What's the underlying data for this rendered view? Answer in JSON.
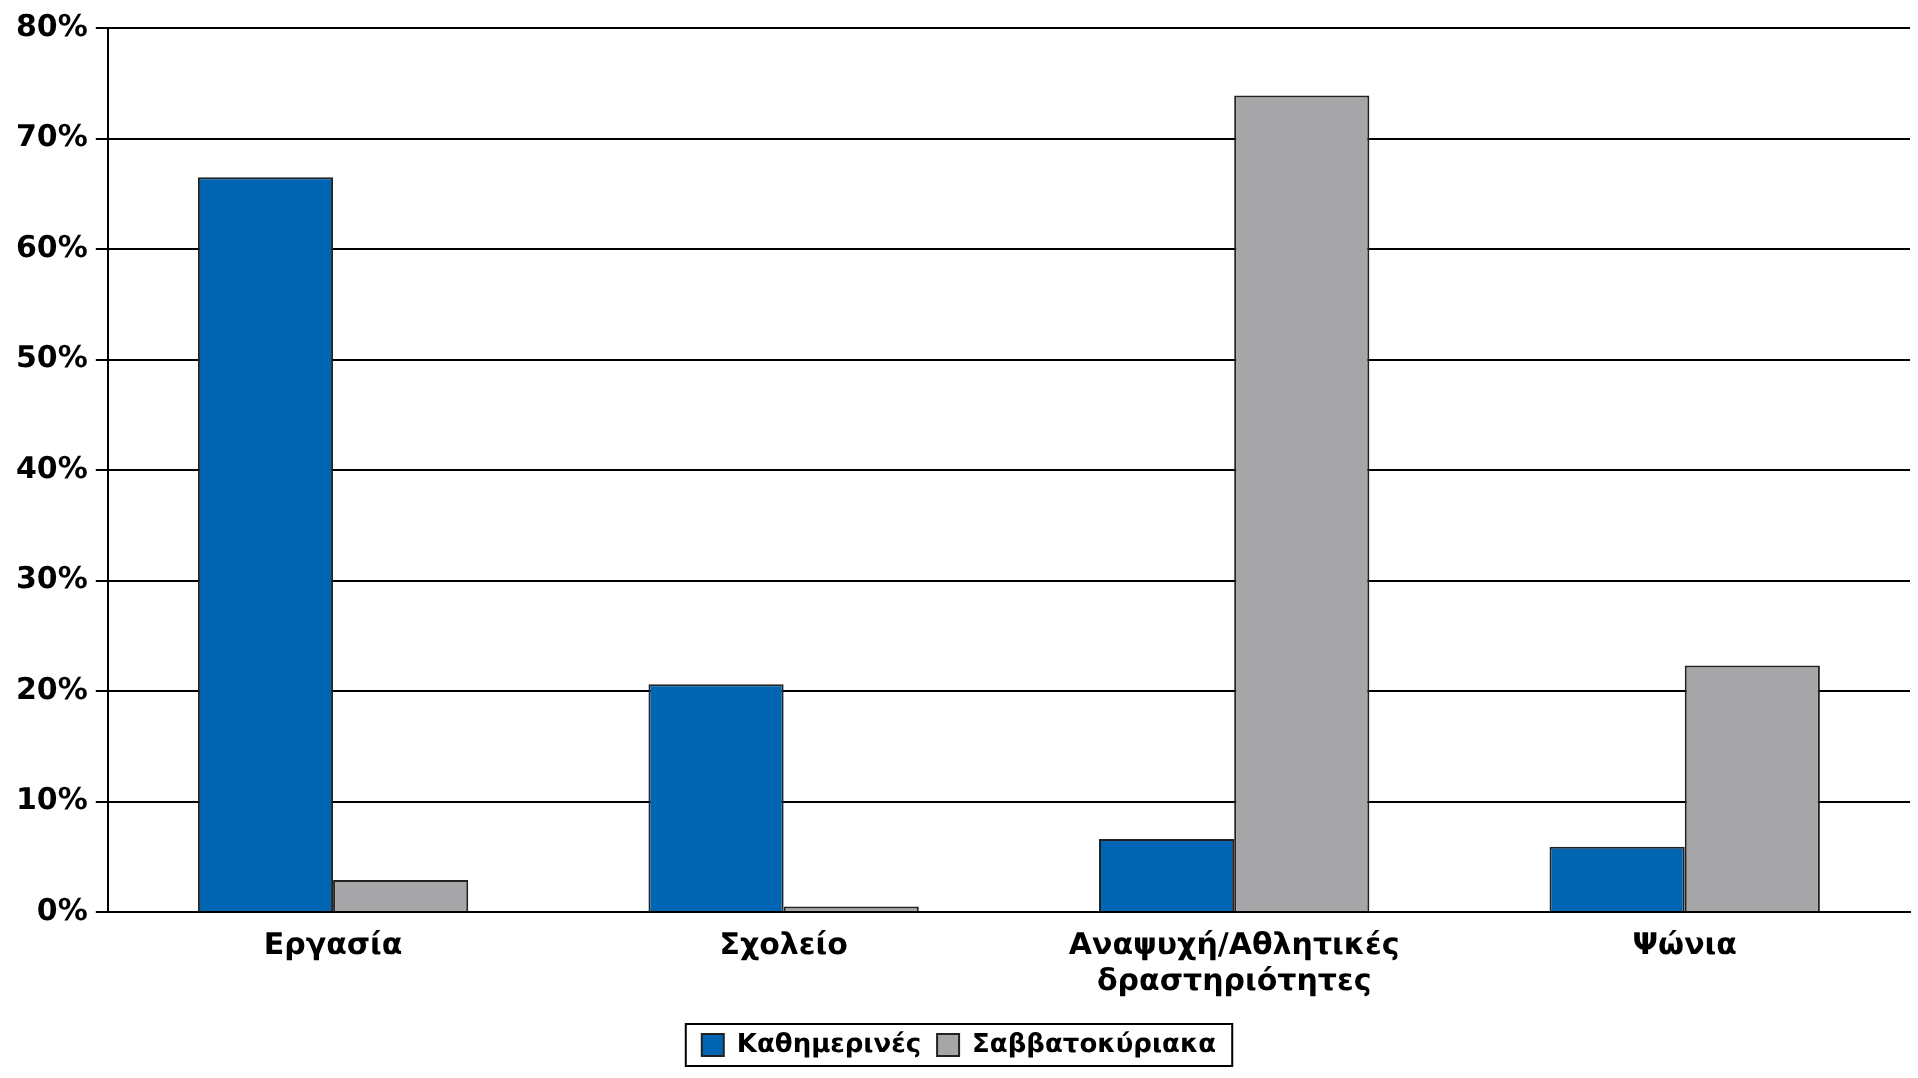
{
  "chart_data": {
    "type": "bar",
    "categories": [
      "Εργασία",
      "Σχολείο",
      "Αναψυχή/Αθλητικές δραστηριότητες",
      "Ψώνια"
    ],
    "series": [
      {
        "name": "Καθημερινές",
        "color": "#0066b3",
        "values": [
          66.5,
          20.6,
          6.6,
          5.9
        ]
      },
      {
        "name": "Σαββατοκύριακα",
        "color": "#a6a6a8",
        "values": [
          2.9,
          0.5,
          73.9,
          22.3
        ]
      }
    ],
    "ylim": [
      0,
      80
    ],
    "yticks": [
      {
        "value": 0,
        "label": "0%"
      },
      {
        "value": 10,
        "label": "10%"
      },
      {
        "value": 20,
        "label": "20%"
      },
      {
        "value": 30,
        "label": "30%"
      },
      {
        "value": 40,
        "label": "40%"
      },
      {
        "value": 50,
        "label": "50%"
      },
      {
        "value": 60,
        "label": "60%"
      },
      {
        "value": 70,
        "label": "70%"
      },
      {
        "value": 80,
        "label": "80%"
      }
    ],
    "grid": "y",
    "legend": "bottom"
  }
}
